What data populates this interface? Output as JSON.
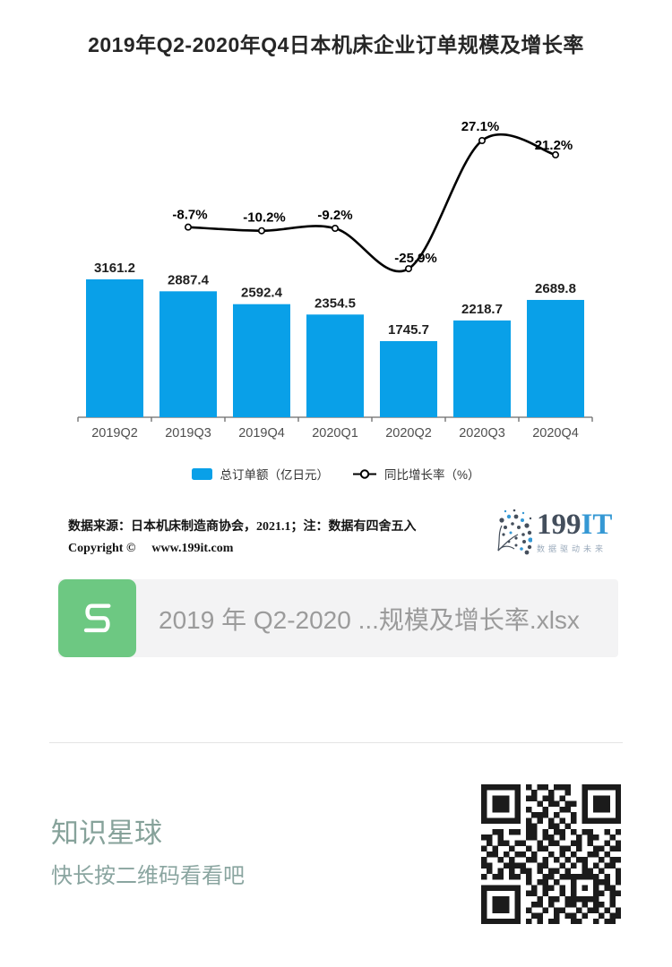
{
  "chart_data": {
    "type": "combo_bar_line",
    "title": "2019年Q2-2020年Q4日本机床企业订单规模及增长率",
    "categories": [
      "2019Q2",
      "2019Q3",
      "2019Q4",
      "2020Q1",
      "2020Q2",
      "2020Q3",
      "2020Q4"
    ],
    "series": [
      {
        "name": "总订单额（亿日元）",
        "type": "bar",
        "color": "#09a0e8",
        "values": [
          3161.2,
          2887.4,
          2592.4,
          2354.5,
          1745.7,
          2218.7,
          2689.8
        ]
      },
      {
        "name": "同比增长率（%）",
        "type": "line",
        "color": "#000000",
        "values": [
          null,
          -8.7,
          -10.2,
          -9.2,
          -25.9,
          27.1,
          21.2
        ]
      }
    ],
    "value_labels": true,
    "grid": false,
    "y_axis": "hidden",
    "legend_position": "bottom"
  },
  "footer": {
    "source_note": "数据来源：日本机床制造商协会，2021.1；注：数据有四舍五入",
    "copyright_label": "Copyright ©",
    "website": "www.199it.com",
    "logo_199": "199",
    "logo_it": "IT",
    "logo_tagline": "数据驱动未来"
  },
  "attachment": {
    "filename": "2019 年 Q2-2020 ...规模及增长率.xlsx",
    "file_type": "xlsx-spreadsheet",
    "icon_color": "#6dc882"
  },
  "promo": {
    "title": "知识星球",
    "subtitle": "快长按二维码看看吧",
    "accent_color": "#86a29a"
  },
  "qr": {
    "modules": [
      "1111111010110111001111111",
      "1000001001001001001000001",
      "1011101011011010001011101",
      "1011101000101101101011101",
      "1011101010010011001011101",
      "1000001001110100101000001",
      "1111111010101010101111111",
      "0000000011001101000000000",
      "0011011011010110101100101",
      "1101000011011010010110010",
      "0101101100101100110100101",
      "1010010010110011010011011",
      "0110101101001010100110100",
      "1001010011010101011001011",
      "1100111100110010101010110",
      "0101010110101101001101001",
      "1011011010011011111110101",
      "0000000010110100100011101",
      "1111111001011010101010110",
      "1000001011010010100011011",
      "1011101000101101111110010",
      "1011101001101001101011010",
      "1011101010010110010110101",
      "1000001001100101101001011",
      "1111111010101100110010110"
    ]
  }
}
